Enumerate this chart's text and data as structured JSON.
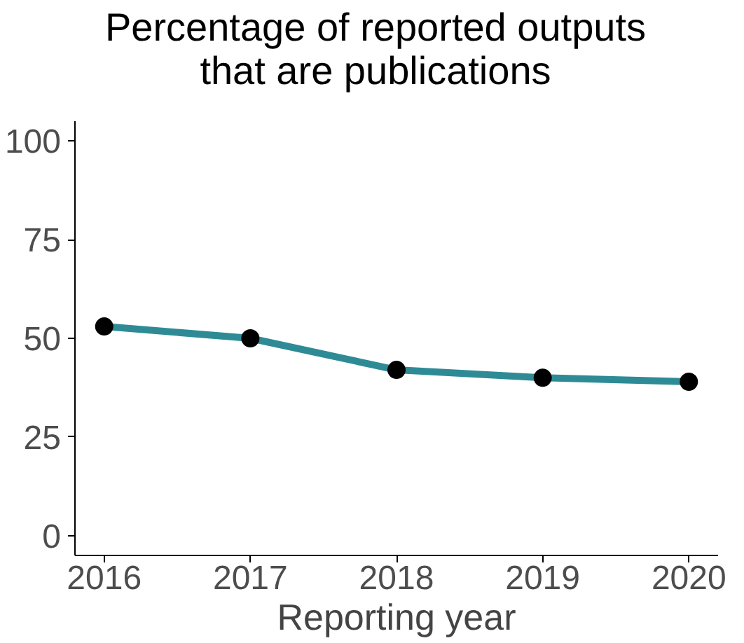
{
  "chart_data": {
    "type": "line",
    "title": "Percentage of reported outputs that are publications",
    "xlabel": "Reporting year",
    "x": [
      2016,
      2017,
      2018,
      2019,
      2020
    ],
    "series": [
      {
        "color": "#2e8b96",
        "values": [
          53,
          50,
          42,
          40,
          39
        ]
      }
    ],
    "xlim": [
      2015.8,
      2020.2
    ],
    "xticks": [
      2016,
      2017,
      2018,
      2019,
      2020
    ],
    "ylim": [
      -5,
      105
    ],
    "yticks": [
      0,
      25,
      50,
      75,
      100
    ],
    "grid": false,
    "marker": "circle",
    "line_style": "solid"
  }
}
